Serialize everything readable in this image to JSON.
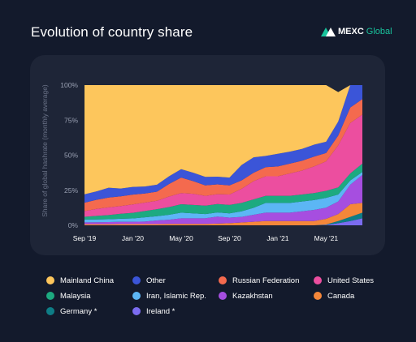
{
  "header": {
    "title": "Evolution of country share",
    "logo_name": "MEXC",
    "logo_sub": "Global"
  },
  "colors": {
    "background": "#131a2c",
    "panel": "#1e2537",
    "logo_green": "#19c39c"
  },
  "chart_data": {
    "type": "area",
    "stacked": true,
    "ylabel": "Share of global hashrate (monthly average)",
    "xlabel": "",
    "ylim": [
      0,
      100
    ],
    "yticks": [
      "100%",
      "75%",
      "50%",
      "25%",
      "0%"
    ],
    "xtick_labels": [
      "Sep '19",
      "Jan '20",
      "May '20",
      "Sep '20",
      "Jan '21",
      "May '21"
    ],
    "x": [
      "2019-09",
      "2019-10",
      "2019-11",
      "2019-12",
      "2020-01",
      "2020-02",
      "2020-03",
      "2020-04",
      "2020-05",
      "2020-06",
      "2020-07",
      "2020-08",
      "2020-09",
      "2020-10",
      "2020-11",
      "2020-12",
      "2021-01",
      "2021-02",
      "2021-03",
      "2021-04",
      "2021-05",
      "2021-06",
      "2021-07",
      "2021-08"
    ],
    "grid": false,
    "legend_position": "bottom",
    "series": [
      {
        "name": "Ireland *",
        "color": "#7b6cf0",
        "values": [
          0,
          0,
          0,
          0,
          0,
          0,
          0,
          0,
          0,
          0,
          0,
          0,
          0,
          0,
          0,
          0,
          0,
          0,
          0,
          0,
          0.3,
          1.5,
          3,
          5
        ]
      },
      {
        "name": "Germany *",
        "color": "#0e7d86",
        "values": [
          0,
          0,
          0,
          0,
          0,
          0,
          0,
          0,
          0,
          0,
          0,
          0,
          0,
          0,
          0,
          0,
          0,
          0,
          0,
          0,
          0.3,
          1.5,
          3,
          4
        ]
      },
      {
        "name": "Canada",
        "color": "#f5873a",
        "values": [
          0.8,
          0.8,
          0.8,
          0.9,
          0.9,
          0.9,
          0.9,
          1.0,
          1.0,
          1.0,
          1.0,
          1.2,
          1.5,
          2.0,
          2.5,
          3.0,
          3.0,
          3.0,
          3.0,
          3.0,
          4.0,
          5.0,
          9.0,
          7.0
        ]
      },
      {
        "name": "Kazakhstan",
        "color": "#a64ee0",
        "values": [
          1.3,
          1.4,
          1.5,
          1.6,
          1.6,
          1.8,
          2.6,
          3.0,
          4.0,
          4.0,
          4.0,
          5.0,
          4.0,
          4.0,
          5.0,
          6.0,
          6.0,
          6.0,
          7.0,
          8.0,
          8.0,
          9.0,
          14.0,
          20.0
        ]
      },
      {
        "name": "Iran, Islamic Rep.",
        "color": "#5cb6f5",
        "values": [
          2.0,
          2.0,
          2.0,
          2.2,
          2.4,
          3.0,
          3.0,
          3.5,
          4.0,
          3.5,
          3.0,
          3.0,
          3.0,
          4.0,
          5.0,
          7.0,
          7.0,
          7.0,
          7.0,
          7.0,
          7.0,
          5.0,
          3.0,
          2.0
        ]
      },
      {
        "name": "Malaysia",
        "color": "#1daa80",
        "values": [
          2.0,
          2.5,
          3.0,
          3.5,
          4.0,
          4.5,
          5.0,
          5.5,
          6.0,
          6.0,
          6.0,
          6.0,
          6.0,
          6.0,
          6.0,
          5.0,
          5.0,
          5.0,
          5.0,
          5.0,
          5.0,
          5.0,
          5.0,
          6.0
        ]
      },
      {
        "name": "United States",
        "color": "#ec4e9f",
        "values": [
          4.0,
          5.0,
          5.5,
          5.5,
          6.0,
          6.0,
          6.0,
          7.5,
          8.0,
          8.0,
          7.0,
          7.0,
          7.5,
          10.0,
          13.0,
          14.0,
          14.0,
          16.0,
          17.0,
          19.0,
          21.0,
          30.0,
          36.0,
          35.0
        ]
      },
      {
        "name": "Russian Federation",
        "color": "#f46a4e",
        "values": [
          6.0,
          6.5,
          7.0,
          7.0,
          7.0,
          6.5,
          6.5,
          9.0,
          11.0,
          9.0,
          7.5,
          7.0,
          6.5,
          6.0,
          6.0,
          6.5,
          7.0,
          7.0,
          7.0,
          7.0,
          6.0,
          7.0,
          11.0,
          11.0
        ]
      },
      {
        "name": "Other",
        "color": "#3b55d8",
        "values": [
          6.0,
          6.0,
          7.0,
          5.5,
          5.5,
          5.0,
          5.0,
          5.5,
          6.0,
          6.0,
          6.0,
          5.5,
          5.5,
          11.0,
          11.0,
          8.0,
          9.0,
          8.5,
          8.5,
          8.5,
          8.0,
          10.0,
          16.0,
          10.0
        ]
      },
      {
        "name": "Mainland China",
        "color": "#fdc65c",
        "values": [
          77.9,
          75.8,
          73.2,
          73.8,
          72.6,
          72.3,
          71.0,
          65.0,
          60.0,
          62.5,
          65.5,
          65.3,
          66.0,
          57.0,
          51.5,
          50.5,
          49.0,
          47.5,
          45.5,
          42.5,
          40.4,
          21.0,
          0,
          0
        ]
      }
    ]
  },
  "legend_rows": [
    [
      "Mainland China",
      "Other",
      "Russian Federation",
      "United States"
    ],
    [
      "Malaysia",
      "Iran, Islamic Rep.",
      "Kazakhstan",
      "Canada"
    ],
    [
      "Germany *",
      "Ireland *"
    ]
  ]
}
